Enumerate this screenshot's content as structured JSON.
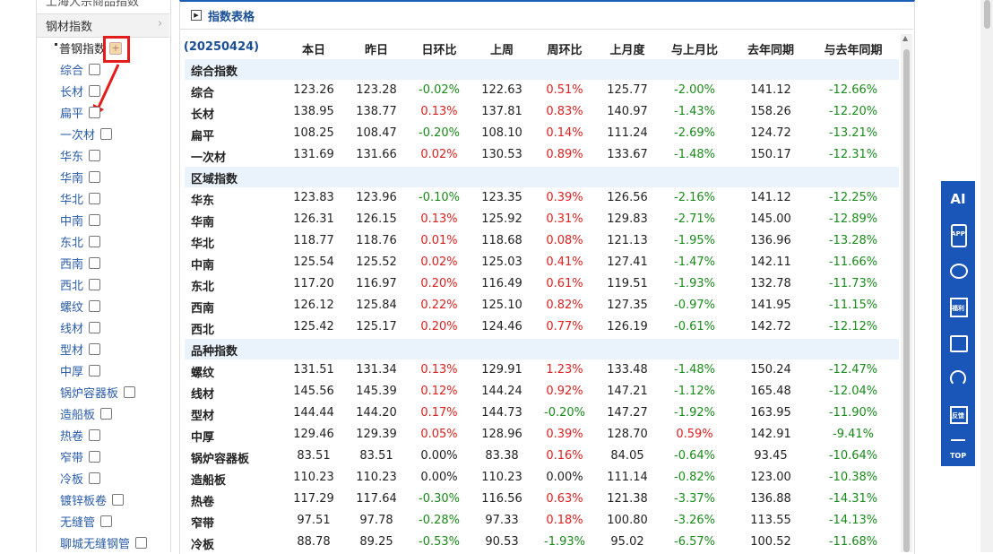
{
  "sidebar": {
    "partial_item": "上海大宗商品指数",
    "section": "钢材指数",
    "subsection": "普钢指数",
    "items": [
      "综合",
      "长材",
      "扁平",
      "一次材",
      "华东",
      "华南",
      "华北",
      "中南",
      "东北",
      "西南",
      "西北",
      "螺纹",
      "线材",
      "型材",
      "中厚",
      "锅炉容器板",
      "造船板",
      "热卷",
      "窄带",
      "冷板",
      "镀锌板卷",
      "无缝管",
      "聊城无缝钢管"
    ]
  },
  "panel": {
    "title": "指数表格"
  },
  "table": {
    "header": [
      "(20250424)",
      "本日",
      "昨日",
      "日环比",
      "上周",
      "周环比",
      "上月度",
      "与上月比",
      "去年同期",
      "与去年同期"
    ],
    "groups": [
      {
        "name": "综合指数",
        "rows": [
          [
            "综合",
            "123.26",
            "123.28",
            "-0.02%",
            "122.63",
            "0.51%",
            "125.77",
            "-2.00%",
            "141.12",
            "-12.66%"
          ],
          [
            "长材",
            "138.95",
            "138.77",
            "0.13%",
            "137.81",
            "0.83%",
            "140.97",
            "-1.43%",
            "158.26",
            "-12.20%"
          ],
          [
            "扁平",
            "108.25",
            "108.47",
            "-0.20%",
            "108.10",
            "0.14%",
            "111.24",
            "-2.69%",
            "124.72",
            "-13.21%"
          ],
          [
            "一次材",
            "131.69",
            "131.66",
            "0.02%",
            "130.53",
            "0.89%",
            "133.67",
            "-1.48%",
            "150.17",
            "-12.31%"
          ]
        ]
      },
      {
        "name": "区域指数",
        "rows": [
          [
            "华东",
            "123.83",
            "123.96",
            "-0.10%",
            "123.35",
            "0.39%",
            "126.56",
            "-2.16%",
            "141.12",
            "-12.25%"
          ],
          [
            "华南",
            "126.31",
            "126.15",
            "0.13%",
            "125.92",
            "0.31%",
            "129.83",
            "-2.71%",
            "145.00",
            "-12.89%"
          ],
          [
            "华北",
            "118.77",
            "118.76",
            "0.01%",
            "118.68",
            "0.08%",
            "121.13",
            "-1.95%",
            "136.96",
            "-13.28%"
          ],
          [
            "中南",
            "125.54",
            "125.52",
            "0.02%",
            "125.03",
            "0.41%",
            "127.41",
            "-1.47%",
            "142.11",
            "-11.66%"
          ],
          [
            "东北",
            "117.20",
            "116.97",
            "0.20%",
            "116.49",
            "0.61%",
            "119.51",
            "-1.93%",
            "132.78",
            "-11.73%"
          ],
          [
            "西南",
            "126.12",
            "125.84",
            "0.22%",
            "125.10",
            "0.82%",
            "127.35",
            "-0.97%",
            "141.95",
            "-11.15%"
          ],
          [
            "西北",
            "125.42",
            "125.17",
            "0.20%",
            "124.46",
            "0.77%",
            "126.19",
            "-0.61%",
            "142.72",
            "-12.12%"
          ]
        ]
      },
      {
        "name": "品种指数",
        "rows": [
          [
            "螺纹",
            "131.51",
            "131.34",
            "0.13%",
            "129.91",
            "1.23%",
            "133.48",
            "-1.48%",
            "150.24",
            "-12.47%"
          ],
          [
            "线材",
            "145.56",
            "145.39",
            "0.12%",
            "144.24",
            "0.92%",
            "147.21",
            "-1.12%",
            "165.48",
            "-12.04%"
          ],
          [
            "型材",
            "144.44",
            "144.20",
            "0.17%",
            "144.73",
            "-0.20%",
            "147.27",
            "-1.92%",
            "163.95",
            "-11.90%"
          ],
          [
            "中厚",
            "129.46",
            "129.39",
            "0.05%",
            "128.96",
            "0.39%",
            "128.70",
            "0.59%",
            "142.91",
            "-9.41%"
          ],
          [
            "锅炉容器板",
            "83.51",
            "83.51",
            "0.00%",
            "83.38",
            "0.16%",
            "84.05",
            "-0.64%",
            "93.45",
            "-10.64%"
          ],
          [
            "造船板",
            "110.23",
            "110.23",
            "0.00%",
            "110.23",
            "0.00%",
            "111.14",
            "-0.82%",
            "123.00",
            "-10.38%"
          ],
          [
            "热卷",
            "117.29",
            "117.64",
            "-0.30%",
            "116.56",
            "0.63%",
            "121.38",
            "-3.37%",
            "136.88",
            "-14.31%"
          ],
          [
            "窄带",
            "97.51",
            "97.78",
            "-0.28%",
            "97.33",
            "0.18%",
            "100.80",
            "-3.26%",
            "113.55",
            "-14.13%"
          ],
          [
            "冷板",
            "88.78",
            "89.25",
            "-0.53%",
            "90.53",
            "-1.93%",
            "95.02",
            "-6.57%",
            "100.52",
            "-11.68%"
          ]
        ]
      }
    ]
  },
  "toolbar": {
    "ai": "AI",
    "app": "APP",
    "gift": "福利",
    "feedback": "反馈",
    "top": "TOP"
  }
}
